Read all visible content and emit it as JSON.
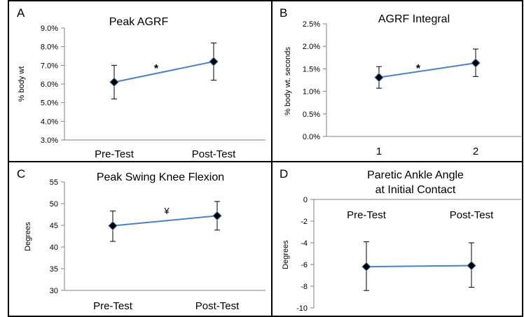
{
  "chart_data": [
    {
      "type": "line",
      "panel_letter": "A",
      "title": "Peak AGRF",
      "ylabel": "% body wt",
      "xlabel": "",
      "categories": [
        "Pre-Test",
        "Post-Test"
      ],
      "series": [
        {
          "values": [
            6.1,
            7.2
          ],
          "error_low": [
            5.2,
            6.2
          ],
          "error_high": [
            7.0,
            8.2
          ]
        }
      ],
      "ylim": [
        3.0,
        9.0
      ],
      "yticks": [
        "3.0%",
        "4.0%",
        "5.0%",
        "6.0%",
        "7.0%",
        "8.0%",
        "9.0%"
      ],
      "significance": "*",
      "grid": false
    },
    {
      "type": "line",
      "panel_letter": "B",
      "title": "AGRF Integral",
      "ylabel": "% body wt. seconds",
      "xlabel": "",
      "categories": [
        "1",
        "2"
      ],
      "series": [
        {
          "values": [
            1.31,
            1.63
          ],
          "error_low": [
            1.07,
            1.33
          ],
          "error_high": [
            1.55,
            1.94
          ]
        }
      ],
      "ylim": [
        0.0,
        2.5
      ],
      "yticks": [
        "0.0%",
        "0.5%",
        "1.0%",
        "1.5%",
        "2.0%",
        "2.5%"
      ],
      "significance": "*",
      "grid": false
    },
    {
      "type": "line",
      "panel_letter": "C",
      "title": "Peak Swing Knee Flexion",
      "ylabel": "Degrees",
      "xlabel": "",
      "categories": [
        "Pre-Test",
        "Post-Test"
      ],
      "series": [
        {
          "values": [
            44.9,
            47.2
          ],
          "error_low": [
            41.3,
            43.9
          ],
          "error_high": [
            48.3,
            50.5
          ]
        }
      ],
      "ylim": [
        30,
        55
      ],
      "yticks": [
        "30",
        "35",
        "40",
        "45",
        "50",
        "55"
      ],
      "significance": "¥",
      "grid": false
    },
    {
      "type": "line",
      "panel_letter": "D",
      "title": "Paretic Ankle Angle at Initial Contact",
      "title_lines": [
        "Paretic Ankle Angle",
        "at Initial Contact"
      ],
      "ylabel": "Degrees",
      "xlabel": "",
      "categories": [
        "Pre-Test",
        "Post-Test"
      ],
      "series": [
        {
          "values": [
            -6.2,
            -6.1
          ],
          "error_low": [
            -8.4,
            -8.1
          ],
          "error_high": [
            -3.9,
            -4.0
          ]
        }
      ],
      "ylim": [
        -10,
        0
      ],
      "yticks": [
        "-10",
        "-8",
        "-6",
        "-4",
        "-2",
        "0"
      ],
      "significance": "",
      "grid": false
    }
  ],
  "style": {
    "line_color": "#4f81bd",
    "marker_color": "#000000",
    "border_color": "#000000"
  }
}
